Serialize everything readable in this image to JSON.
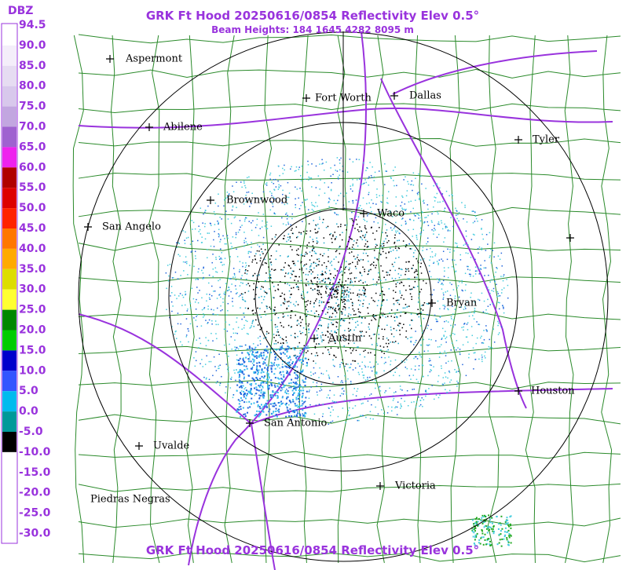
{
  "header": {
    "title": "GRK Ft Hood 20250616/0854 Reflectivity Elev 0.5°",
    "subtitle": "Beam Heights: 184 1645 4282 8095 m"
  },
  "legend": {
    "unit": "DBZ",
    "labels": [
      "94.5",
      "90.0",
      "85.0",
      "80.0",
      "75.0",
      "70.0",
      "65.0",
      "60.0",
      "55.0",
      "50.0",
      "45.0",
      "40.0",
      "35.0",
      "30.0",
      "25.0",
      "20.0",
      "15.0",
      "10.0",
      "5.0",
      "0.0",
      "-5.0",
      "-10.0",
      "-15.0",
      "-20.0",
      "-25.0",
      "-30.0"
    ]
  },
  "cities": [
    "Aspermont",
    "Fort Worth",
    "Dallas",
    "Abilene",
    "Tyler",
    "Brownwood",
    "Waco",
    "San Angelo",
    "Bryan",
    "Austin",
    "Houston",
    "San Antonio",
    "Uvalde",
    "Victoria",
    "Piedras Negras"
  ],
  "footer": {
    "title": "GRK Ft Hood 20250616/0854 Reflectivity Elev 0.5°"
  }
}
